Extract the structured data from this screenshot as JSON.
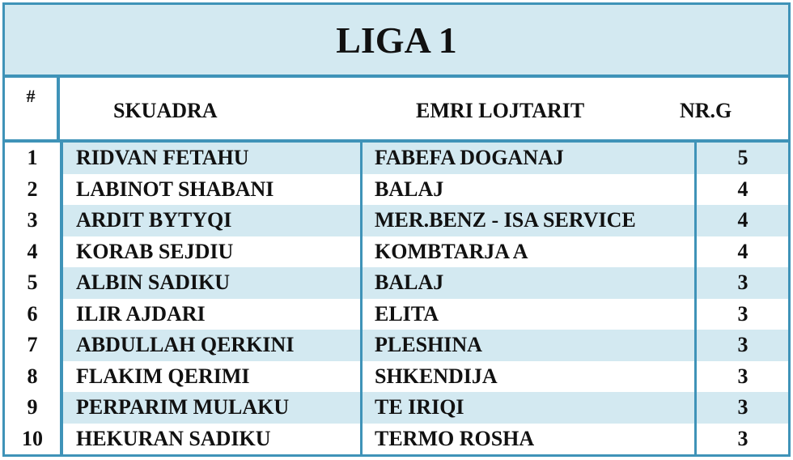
{
  "title": "LIGA 1",
  "headers": {
    "num": "#",
    "team": "SKUADRA",
    "player": "EMRI LOJTARIT",
    "goals": "NR.G"
  },
  "rows": [
    {
      "num": "1",
      "team": "RIDVAN FETAHU",
      "player": "FABEFA DOGANAJ",
      "goals": "5"
    },
    {
      "num": "2",
      "team": "LABINOT SHABANI",
      "player": "BALAJ",
      "goals": "4"
    },
    {
      "num": "3",
      "team": "ARDIT BYTYQI",
      "player": "MER.BENZ - ISA SERVICE",
      "goals": "4"
    },
    {
      "num": "4",
      "team": "KORAB SEJDIU",
      "player": "KOMBTARJA A",
      "goals": "4"
    },
    {
      "num": "5",
      "team": "ALBIN SADIKU",
      "player": "BALAJ",
      "goals": "3"
    },
    {
      "num": "6",
      "team": "ILIR AJDARI",
      "player": "ELITA",
      "goals": "3"
    },
    {
      "num": "7",
      "team": "ABDULLAH QERKINI",
      "player": "PLESHINA",
      "goals": "3"
    },
    {
      "num": "8",
      "team": "FLAKIM QERIMI",
      "player": "SHKENDIJA",
      "goals": "3"
    },
    {
      "num": "9",
      "team": "PERPARIM MULAKU",
      "player": "TE IRIQI",
      "goals": "3"
    },
    {
      "num": "10",
      "team": "HEKURAN SADIKU",
      "player": "TERMO ROSHA",
      "goals": "3"
    }
  ],
  "colors": {
    "border": "#3f93b8",
    "band": "#d3e9f1"
  }
}
